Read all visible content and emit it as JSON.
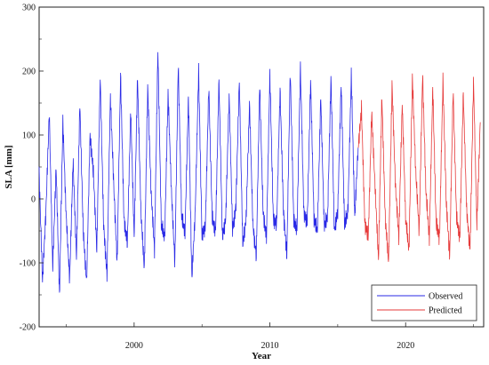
{
  "chart_data": {
    "type": "line",
    "title": "",
    "xlabel": "Year",
    "ylabel": "SLA [mm]",
    "xlim": [
      1993.0,
      2025.75
    ],
    "ylim": [
      -200,
      300
    ],
    "xticks": [
      2000,
      2010,
      2020
    ],
    "yticks": [
      -200,
      -100,
      0,
      100,
      200,
      300
    ],
    "grid": false,
    "legend": "bottom-right",
    "series": [
      {
        "name": "Observed",
        "color": "#2a2ae6",
        "x": [
          1993.0,
          1993.25,
          1993.5,
          1993.75,
          1994.0,
          1994.25,
          1994.5,
          1994.75,
          1995.0,
          1995.25,
          1995.5,
          1995.75,
          1996.0,
          1996.25,
          1996.5,
          1996.75,
          1997.0,
          1997.25,
          1997.5,
          1997.75,
          1998.0,
          1998.25,
          1998.5,
          1998.75,
          1999.0,
          1999.25,
          1999.5,
          1999.75,
          2000.0,
          2000.25,
          2000.5,
          2000.75,
          2001.0,
          2001.25,
          2001.5,
          2001.75,
          2002.0,
          2002.25,
          2002.5,
          2002.75,
          2003.0,
          2003.25,
          2003.5,
          2003.75,
          2004.0,
          2004.25,
          2004.5,
          2004.75,
          2005.0,
          2005.25,
          2005.5,
          2005.75,
          2006.0,
          2006.25,
          2006.5,
          2006.75,
          2007.0,
          2007.25,
          2007.5,
          2007.75,
          2008.0,
          2008.25,
          2008.5,
          2008.75,
          2009.0,
          2009.25,
          2009.5,
          2009.75,
          2010.0,
          2010.25,
          2010.5,
          2010.75,
          2011.0,
          2011.25,
          2011.5,
          2011.75,
          2012.0,
          2012.25,
          2012.5,
          2012.75,
          2013.0,
          2013.25,
          2013.5,
          2013.75,
          2014.0,
          2014.25,
          2014.5,
          2014.75,
          2015.0,
          2015.25,
          2015.5,
          2015.75,
          2016.0,
          2016.25,
          2016.5
        ],
        "y": [
          40,
          -130,
          -20,
          135,
          -110,
          50,
          -150,
          120,
          -30,
          -125,
          60,
          -90,
          150,
          -50,
          -130,
          100,
          40,
          -80,
          190,
          -40,
          -120,
          160,
          20,
          -100,
          195,
          -30,
          -70,
          140,
          -60,
          190,
          -20,
          -110,
          175,
          10,
          -80,
          232,
          -40,
          -60,
          165,
          10,
          -100,
          210,
          -30,
          -50,
          160,
          -125,
          -20,
          200,
          -60,
          -40,
          175,
          -30,
          -50,
          185,
          -60,
          -30,
          160,
          -50,
          -10,
          185,
          -70,
          -30,
          150,
          -40,
          -90,
          180,
          -20,
          -60,
          195,
          -30,
          -40,
          170,
          -20,
          -90,
          200,
          -30,
          -50,
          205,
          -20,
          -40,
          185,
          -30,
          -50,
          160,
          -40,
          -30,
          190,
          -50,
          -20,
          180,
          -40,
          -20,
          195,
          -30,
          80
        ]
      },
      {
        "name": "Predicted",
        "color": "#e63a3a",
        "x": [
          2016.5,
          2016.75,
          2017.0,
          2017.25,
          2017.5,
          2017.75,
          2018.0,
          2018.25,
          2018.5,
          2018.75,
          2019.0,
          2019.25,
          2019.5,
          2019.75,
          2020.0,
          2020.25,
          2020.5,
          2020.75,
          2021.0,
          2021.25,
          2021.5,
          2021.75,
          2022.0,
          2022.25,
          2022.5,
          2022.75,
          2023.0,
          2023.25,
          2023.5,
          2023.75,
          2024.0,
          2024.25,
          2024.5,
          2024.75,
          2025.0,
          2025.25,
          2025.5
        ],
        "y": [
          80,
          140,
          -40,
          -60,
          135,
          20,
          -95,
          160,
          -30,
          -100,
          180,
          20,
          -60,
          150,
          -30,
          -80,
          190,
          40,
          -50,
          195,
          10,
          -60,
          175,
          -40,
          -60,
          185,
          -10,
          -90,
          170,
          -30,
          -60,
          165,
          -20,
          -80,
          185,
          -40,
          120
        ]
      }
    ]
  }
}
